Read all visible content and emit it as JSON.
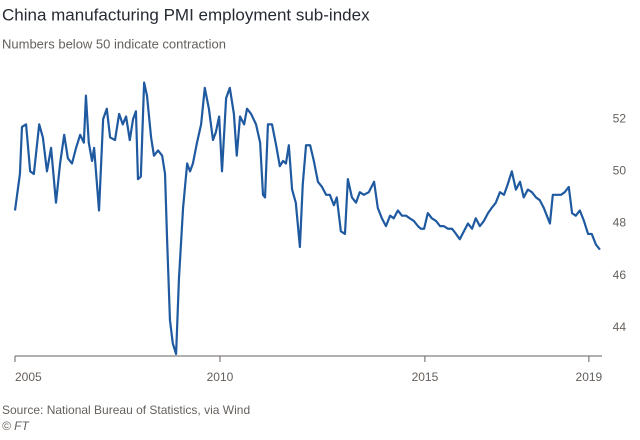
{
  "chart_data": {
    "type": "line",
    "title": "China manufacturing PMI employment sub-index",
    "subtitle": "Numbers below 50 indicate contraction",
    "source": "Source: National Bureau of Statistics, via Wind",
    "credit": "© FT",
    "xlim": [
      2005,
      2019.32
    ],
    "xticks": [
      2005,
      2010,
      2015,
      2019
    ],
    "ylim": [
      43,
      53.5
    ],
    "yticks": [
      44,
      46,
      48,
      50,
      52
    ],
    "grid": false,
    "x": [
      2005.0,
      2005.12,
      2005.17,
      2005.27,
      2005.37,
      2005.46,
      2005.59,
      2005.68,
      2005.78,
      2005.88,
      2006.0,
      2006.1,
      2006.2,
      2006.29,
      2006.39,
      2006.49,
      2006.59,
      2006.68,
      2006.73,
      2006.8,
      2006.88,
      2006.93,
      2007.05,
      2007.15,
      2007.24,
      2007.32,
      2007.44,
      2007.54,
      2007.63,
      2007.71,
      2007.8,
      2007.88,
      2007.95,
      2008.0,
      2008.07,
      2008.15,
      2008.22,
      2008.32,
      2008.39,
      2008.49,
      2008.59,
      2008.66,
      2008.71,
      2008.78,
      2008.85,
      2008.93,
      2009.0,
      2009.1,
      2009.2,
      2009.27,
      2009.34,
      2009.44,
      2009.54,
      2009.63,
      2009.73,
      2009.83,
      2009.9,
      2009.98,
      2010.05,
      2010.15,
      2010.24,
      2010.34,
      2010.41,
      2010.49,
      2010.59,
      2010.66,
      2010.76,
      2010.88,
      2010.98,
      2011.05,
      2011.1,
      2011.17,
      2011.27,
      2011.37,
      2011.46,
      2011.54,
      2011.61,
      2011.68,
      2011.76,
      2011.85,
      2011.95,
      2012.02,
      2012.1,
      2012.2,
      2012.29,
      2012.39,
      2012.49,
      2012.59,
      2012.68,
      2012.78,
      2012.85,
      2012.95,
      2013.05,
      2013.12,
      2013.22,
      2013.32,
      2013.41,
      2013.51,
      2013.63,
      2013.76,
      2013.85,
      2013.95,
      2014.05,
      2014.15,
      2014.24,
      2014.34,
      2014.44,
      2014.54,
      2014.63,
      2014.73,
      2014.83,
      2014.9,
      2014.98,
      2015.07,
      2015.17,
      2015.27,
      2015.37,
      2015.46,
      2015.56,
      2015.66,
      2015.76,
      2015.85,
      2015.95,
      2016.05,
      2016.15,
      2016.24,
      2016.34,
      2016.44,
      2016.54,
      2016.63,
      2016.73,
      2016.83,
      2016.93,
      2017.02,
      2017.12,
      2017.22,
      2017.32,
      2017.41,
      2017.51,
      2017.61,
      2017.71,
      2017.8,
      2017.9,
      2018.0,
      2018.05,
      2018.12,
      2018.22,
      2018.32,
      2018.41,
      2018.51,
      2018.59,
      2018.68,
      2018.78,
      2018.88,
      2018.98,
      2019.07,
      2019.17,
      2019.27
    ],
    "series": [
      {
        "name": "Employment sub-index",
        "color": "#1f5aa0",
        "values": [
          48.5,
          49.9,
          51.7,
          51.8,
          50.0,
          49.9,
          51.8,
          51.3,
          50.0,
          50.9,
          48.8,
          50.3,
          51.4,
          50.5,
          50.3,
          50.9,
          51.4,
          51.1,
          52.9,
          51.1,
          50.4,
          50.9,
          48.5,
          52.0,
          52.4,
          51.3,
          51.2,
          52.2,
          51.8,
          52.1,
          51.2,
          52.0,
          52.3,
          49.7,
          49.8,
          53.4,
          52.9,
          51.3,
          50.6,
          50.8,
          50.6,
          49.9,
          47.4,
          44.3,
          43.4,
          43.0,
          45.9,
          48.6,
          50.3,
          50.0,
          50.3,
          51.1,
          51.8,
          53.2,
          52.4,
          51.2,
          51.5,
          52.1,
          50.0,
          52.8,
          53.2,
          52.2,
          50.6,
          52.1,
          51.8,
          52.4,
          52.2,
          51.8,
          51.1,
          49.1,
          49.0,
          51.8,
          51.8,
          51.0,
          50.2,
          50.4,
          50.3,
          51.0,
          49.3,
          48.8,
          47.1,
          49.5,
          51.0,
          51.0,
          50.4,
          49.6,
          49.4,
          49.1,
          49.1,
          48.7,
          49.0,
          47.7,
          47.6,
          49.7,
          49.0,
          48.8,
          49.2,
          49.1,
          49.2,
          49.6,
          48.6,
          48.2,
          47.9,
          48.3,
          48.2,
          48.5,
          48.3,
          48.3,
          48.2,
          48.1,
          47.9,
          47.8,
          47.8,
          48.4,
          48.2,
          48.1,
          47.9,
          47.9,
          47.8,
          47.8,
          47.6,
          47.4,
          47.7,
          48.0,
          47.8,
          48.2,
          47.9,
          48.1,
          48.4,
          48.6,
          48.8,
          49.2,
          49.1,
          49.5,
          50.0,
          49.3,
          49.6,
          49.0,
          49.3,
          49.2,
          49.0,
          48.9,
          48.6,
          48.2,
          48.0,
          49.1,
          49.1,
          49.1,
          49.2,
          49.4,
          48.4,
          48.3,
          48.5,
          48.1,
          47.6,
          47.6,
          47.2,
          47.0
        ]
      }
    ]
  }
}
